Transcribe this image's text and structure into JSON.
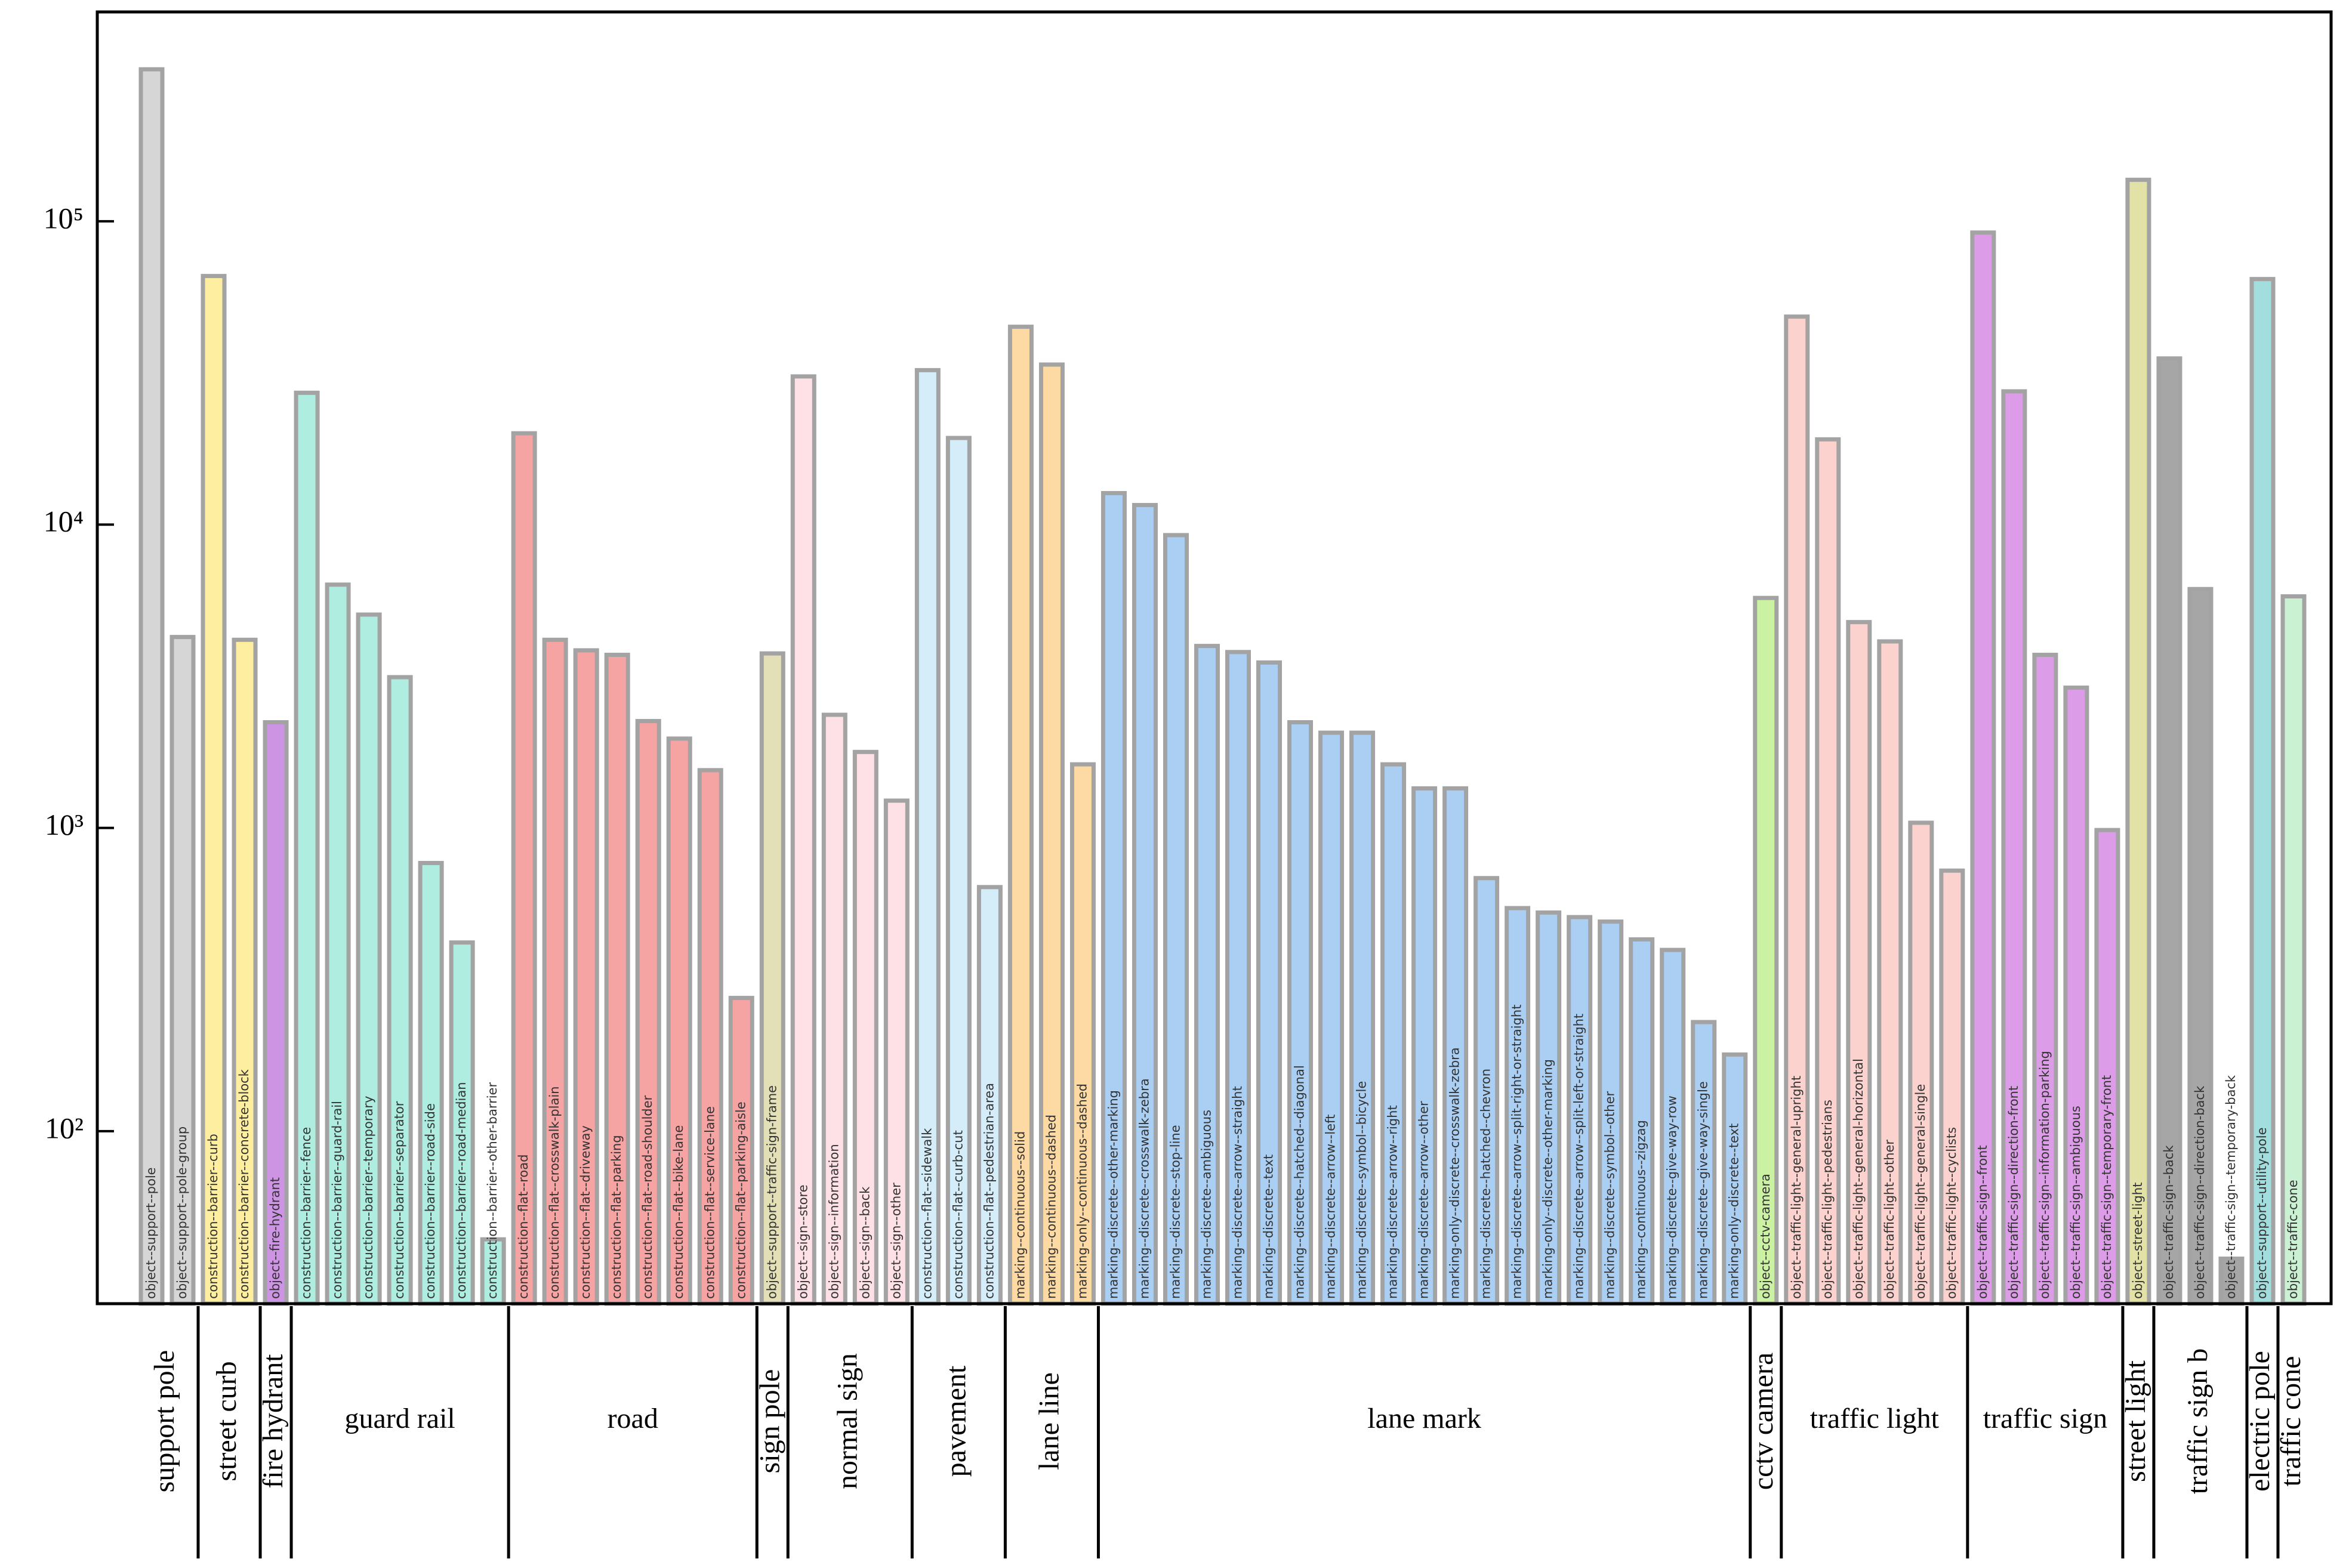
{
  "chart_data": {
    "type": "bar",
    "log_scale": true,
    "ylim": [
      27,
      490000
    ],
    "yticks": [
      {
        "value": 100,
        "label": "10²"
      },
      {
        "value": 1000,
        "label": "10³"
      },
      {
        "value": 10000,
        "label": "10⁴"
      },
      {
        "value": 100000,
        "label": "10⁵"
      }
    ],
    "groups": [
      {
        "name": "support pole",
        "color": "#d6d6d6",
        "categories": [
          "object--support--pole",
          "object--support--pole-group"
        ],
        "values": [
          317000,
          4260
        ]
      },
      {
        "name": "street curb",
        "color": "#fdeea0",
        "categories": [
          "construction--barrier--curb",
          "construction--barrier--concrete-block"
        ],
        "values": [
          66000,
          4170
        ]
      },
      {
        "name": "fire hydrant",
        "color": "#cd94e4",
        "categories": [
          "object--fire-hydrant"
        ],
        "values": [
          2230
        ]
      },
      {
        "name": "guard rail",
        "color": "#aeede0",
        "categories": [
          "construction--barrier--fence",
          "construction--barrier--guard-rail",
          "construction--barrier--temporary",
          "construction--barrier--separator",
          "construction--barrier--road-side",
          "construction--barrier--road-median",
          "construction--barrier--other-barrier"
        ],
        "values": [
          27200,
          6340,
          5050,
          3140,
          766,
          419,
          44
        ]
      },
      {
        "name": "road",
        "color": "#f5a3a3",
        "categories": [
          "construction--flat--road",
          "construction--flat--crosswalk-plain",
          "construction--flat--driveway",
          "construction--flat--parking",
          "construction--flat--road-shoulder",
          "construction--flat--bike-lane",
          "construction--flat--service-lane",
          "construction--flat--parking-aisle"
        ],
        "values": [
          20000,
          4170,
          3850,
          3720,
          2250,
          1970,
          1550,
          275
        ]
      },
      {
        "name": "sign pole",
        "color": "#e3dfb6",
        "categories": [
          "object--support--traffic-sign-frame"
        ],
        "values": [
          3760
        ]
      },
      {
        "name": "normal sign",
        "color": "#fde1e7",
        "categories": [
          "object--sign--store",
          "object--sign--information",
          "object--sign--back",
          "object--sign--other"
        ],
        "values": [
          30800,
          2360,
          1780,
          1230
        ]
      },
      {
        "name": "pavement",
        "color": "#d5edf8",
        "categories": [
          "construction--flat--sidewalk",
          "construction--flat--curb-cut",
          "construction--flat--pedestrian-area"
        ],
        "values": [
          32300,
          19300,
          638
        ]
      },
      {
        "name": "lane line",
        "color": "#fddaa3",
        "categories": [
          "marking--continuous--solid",
          "marking--continuous--dashed",
          "marking-only--continuous--dashed"
        ],
        "values": [
          44900,
          33700,
          1620
        ]
      },
      {
        "name": "lane mark",
        "color": "#abcff3",
        "categories": [
          "marking--discrete--other-marking",
          "marking--discrete--crosswalk-zebra",
          "marking--discrete--stop-line",
          "marking--discrete--ambiguous",
          "marking--discrete--arrow--straight",
          "marking--discrete--text",
          "marking--discrete--hatched--diagonal",
          "marking--discrete--arrow--left",
          "marking--discrete--symbol--bicycle",
          "marking--discrete--arrow--right",
          "marking--discrete--arrow--other",
          "marking-only--discrete--crosswalk-zebra",
          "marking--discrete--hatched--chevron",
          "marking--discrete--arrow--split-right-or-straight",
          "marking-only--discrete--other-marking",
          "marking--discrete--arrow--split-left-or-straight",
          "marking--discrete--symbol--other",
          "marking--continuous--zigzag",
          "marking--discrete--give-way-row",
          "marking--discrete--give-way-single",
          "marking-only--discrete--text"
        ],
        "values": [
          12700,
          11600,
          9230,
          3980,
          3800,
          3510,
          2230,
          2060,
          2060,
          1620,
          1350,
          1350,
          683,
          544,
          526,
          508,
          491,
          429,
          396,
          229,
          179
        ]
      },
      {
        "name": "cctv camera",
        "color": "#cbf1a3",
        "categories": [
          "object--cctv-camera"
        ],
        "values": [
          5730
        ]
      },
      {
        "name": "traffic light",
        "color": "#fbd2ce",
        "categories": [
          "object--traffic-light--general-upright",
          "object--traffic-light--pedestrians",
          "object--traffic-light--general-horizontal",
          "object--traffic-light--other",
          "object--traffic-light--general-single",
          "object--traffic-light--cyclists"
        ],
        "values": [
          48500,
          19100,
          4770,
          4120,
          1040,
          723
        ]
      },
      {
        "name": "traffic sign",
        "color": "#dc9ce8",
        "categories": [
          "object--traffic-sign--front",
          "object--traffic-sign--direction-front",
          "object--traffic-sign--information-parking",
          "object--traffic-sign--ambiguous",
          "object--traffic-sign--temporary-front"
        ],
        "values": [
          91800,
          27500,
          3720,
          2900,
          984
        ]
      },
      {
        "name": "street light",
        "color": "#e2e2a6",
        "categories": [
          "object--street-light"
        ],
        "values": [
          137000
        ]
      },
      {
        "name": "traffic sign b",
        "color": "#a6a6a6",
        "categories": [
          "object--traffic-sign--back",
          "object--traffic-sign--direction-back",
          "object--traffic-sign--temporary-back"
        ],
        "values": [
          35300,
          6130,
          38
        ]
      },
      {
        "name": "electric pole",
        "color": "#a3dede",
        "categories": [
          "object--support--utility-pole"
        ],
        "values": [
          64500
        ]
      },
      {
        "name": "traffic cone",
        "color": "#cbf1d3",
        "categories": [
          "object--traffic-cone"
        ],
        "values": [
          5800
        ]
      }
    ]
  }
}
